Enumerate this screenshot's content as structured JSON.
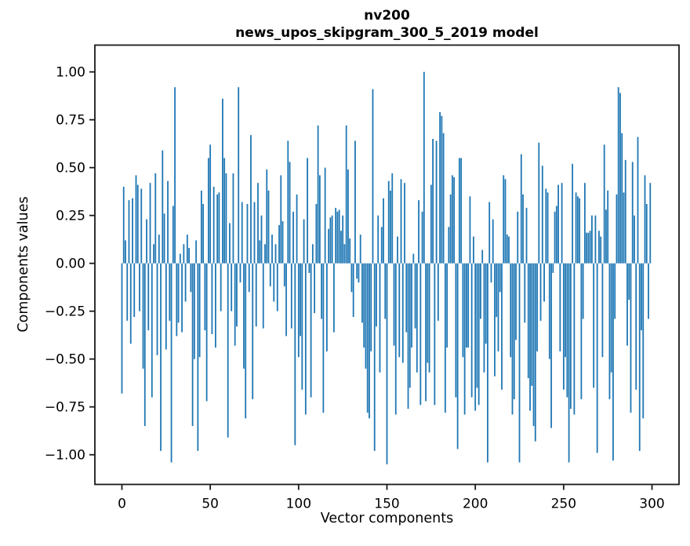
{
  "figure": {
    "title_line1": "nv200",
    "title_line2": "news_upos_skipgram_300_5_2019 model",
    "background": "#ffffff"
  },
  "chart_data": {
    "type": "bar",
    "title": "nv200",
    "subtitle": "news_upos_skipgram_300_5_2019 model",
    "xlabel": "Vector components",
    "ylabel": "Components values",
    "bar_color": "#1f77b4",
    "spine_color": "#1a1a1a",
    "legend": "none",
    "grid": false,
    "x_ticks": [
      0,
      50,
      100,
      150,
      200,
      250,
      300
    ],
    "y_ticks": [
      -1.0,
      -0.75,
      -0.5,
      -0.25,
      0.0,
      0.25,
      0.5,
      0.75,
      1.0
    ],
    "xlim": [
      -15.3,
      315.3
    ],
    "ylim": [
      -1.155,
      1.14
    ],
    "x_start": 0,
    "values": [
      -0.68,
      0.4,
      0.12,
      -0.3,
      0.33,
      -0.42,
      0.34,
      -0.28,
      0.46,
      0.41,
      -0.25,
      0.39,
      -0.55,
      -0.85,
      0.23,
      -0.35,
      0.42,
      -0.7,
      0.1,
      0.47,
      -0.48,
      0.15,
      -0.98,
      0.59,
      0.26,
      -0.45,
      0.43,
      -0.3,
      -1.04,
      0.3,
      0.92,
      -0.38,
      -0.31,
      0.05,
      -0.36,
      0.1,
      -0.2,
      0.15,
      0.08,
      -0.15,
      -0.85,
      -0.5,
      0.12,
      -0.98,
      -0.49,
      0.38,
      0.31,
      -0.35,
      -0.72,
      0.55,
      0.62,
      -0.37,
      0.4,
      -0.44,
      0.36,
      0.37,
      -0.25,
      0.86,
      0.55,
      0.47,
      -0.91,
      0.21,
      -0.25,
      0.47,
      -0.43,
      -0.33,
      0.92,
      -0.1,
      0.32,
      -0.55,
      -0.81,
      0.31,
      -0.15,
      0.67,
      -0.71,
      0.32,
      -0.33,
      0.42,
      0.12,
      0.25,
      -0.34,
      0.1,
      0.49,
      0.38,
      -0.12,
      0.15,
      -0.2,
      0.1,
      -0.25,
      0.2,
      0.46,
      0.22,
      -0.12,
      -0.38,
      0.64,
      0.53,
      -0.34,
      0.27,
      -0.95,
      0.36,
      -0.49,
      -0.38,
      -0.66,
      0.23,
      -0.79,
      0.55,
      -0.05,
      -0.7,
      0.1,
      -0.26,
      0.31,
      0.72,
      0.46,
      -0.29,
      -0.78,
      0.5,
      -0.46,
      0.18,
      0.24,
      0.25,
      -0.36,
      0.29,
      0.27,
      0.28,
      0.17,
      0.25,
      0.1,
      0.72,
      0.49,
      0.13,
      -0.15,
      -0.28,
      0.64,
      -0.08,
      -0.1,
      0.15,
      -0.31,
      -0.44,
      -0.55,
      -0.78,
      -0.81,
      -0.46,
      0.91,
      -0.98,
      -0.33,
      0.25,
      -0.57,
      0.19,
      0.34,
      -0.29,
      -1.05,
      0.43,
      0.38,
      0.47,
      -0.43,
      -0.79,
      0.14,
      -0.49,
      0.44,
      -0.52,
      0.42,
      -0.36,
      -0.76,
      -0.65,
      -0.44,
      0.05,
      -0.34,
      -0.57,
      0.33,
      -0.74,
      0.27,
      1.0,
      -0.72,
      -0.52,
      -0.57,
      0.41,
      0.65,
      -0.74,
      0.64,
      -0.3,
      0.79,
      0.77,
      0.68,
      -0.78,
      -0.44,
      0.19,
      0.36,
      0.46,
      0.45,
      -0.7,
      -0.97,
      0.55,
      0.55,
      -0.49,
      -0.79,
      -0.44,
      -0.44,
      0.35,
      -0.7,
      0.14,
      -0.77,
      -0.65,
      -0.74,
      -0.29,
      0.07,
      -0.57,
      -0.42,
      -1.04,
      0.32,
      -0.1,
      0.23,
      -0.59,
      -0.28,
      -0.46,
      -0.15,
      -0.66,
      0.46,
      0.44,
      0.15,
      0.14,
      -0.49,
      -0.79,
      -0.71,
      -0.4,
      0.27,
      -1.04,
      0.57,
      0.36,
      -0.31,
      0.29,
      -0.6,
      -0.77,
      -0.64,
      -0.85,
      -0.93,
      -0.46,
      0.63,
      -0.3,
      0.51,
      -0.2,
      0.39,
      0.37,
      -0.5,
      -0.86,
      -0.05,
      0.27,
      0.3,
      0.41,
      -0.46,
      0.42,
      -0.66,
      -0.49,
      -0.7,
      -1.04,
      -0.76,
      0.52,
      -0.79,
      0.37,
      0.35,
      0.34,
      -0.71,
      -0.29,
      0.42,
      0.16,
      0.16,
      0.17,
      0.25,
      -0.65,
      0.25,
      -0.99,
      0.17,
      0.14,
      -0.49,
      0.62,
      0.28,
      0.38,
      -0.71,
      -0.57,
      -1.03,
      -0.29,
      0.36,
      0.92,
      0.89,
      0.68,
      0.37,
      0.54,
      -0.43,
      -0.19,
      -0.78,
      0.53,
      0.25,
      -0.66,
      0.66,
      -0.98,
      -0.35,
      -0.81,
      0.46,
      0.31,
      -0.29,
      0.42
    ]
  }
}
